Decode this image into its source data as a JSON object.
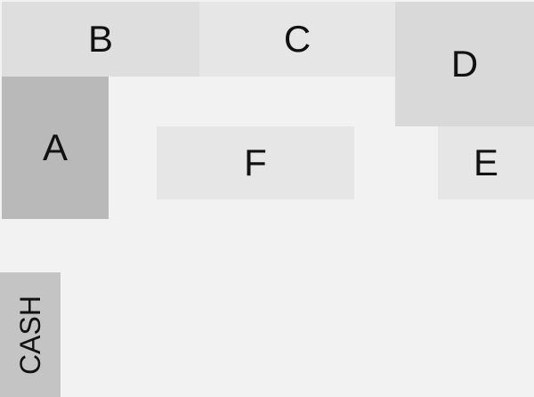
{
  "zones": {
    "a": {
      "label": "A",
      "color": "#b9b9b9"
    },
    "b": {
      "label": "B",
      "color": "#dedede"
    },
    "c": {
      "label": "C",
      "color": "#e6e6e6"
    },
    "d": {
      "label": "D",
      "color": "#d9d9d9"
    },
    "e": {
      "label": "E",
      "color": "#e6e6e6"
    },
    "f": {
      "label": "F",
      "color": "#e6e6e6"
    },
    "cash": {
      "label": "CASH",
      "color": "#c4c4c4"
    }
  },
  "background_color": "#f2f2f2"
}
